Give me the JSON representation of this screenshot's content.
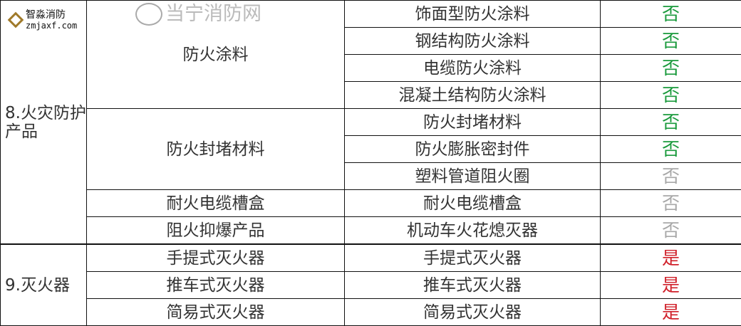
{
  "groups": [
    {
      "category": "8.火灾防护产品",
      "subgroups": [
        {
          "name": "防火涂料",
          "items": [
            {
              "product": "饰面型防火涂料",
              "status": "否",
              "color": "#1a9a3c"
            },
            {
              "product": "钢结构防火涂料",
              "status": "否",
              "color": "#1a9a3c"
            },
            {
              "product": "电缆防火涂料",
              "status": "否",
              "color": "#1a9a3c"
            },
            {
              "product": "混凝土结构防火涂料",
              "status": "否",
              "color": "#1a9a3c"
            }
          ]
        },
        {
          "name": "防火封堵材料",
          "items": [
            {
              "product": "防火封堵材料",
              "status": "否",
              "color": "#1a9a3c"
            },
            {
              "product": "防火膨胀密封件",
              "status": "否",
              "color": "#1a9a3c"
            },
            {
              "product": "塑料管道阻火圈",
              "status": "否",
              "color": "#a8a8a8"
            }
          ]
        },
        {
          "name": "耐火电缆槽盒",
          "items": [
            {
              "product": "耐火电缆槽盒",
              "status": "否",
              "color": "#a8a8a8"
            }
          ]
        },
        {
          "name": "阻火抑爆产品",
          "items": [
            {
              "product": "机动车火花熄灭器",
              "status": "否",
              "color": "#a8a8a8"
            }
          ]
        }
      ]
    },
    {
      "category": "9.灭火器",
      "subgroups": [
        {
          "name": "手提式灭火器",
          "items": [
            {
              "product": "手提式灭火器",
              "status": "是",
              "color": "#d0202a"
            }
          ]
        },
        {
          "name": "推车式灭火器",
          "items": [
            {
              "product": "推车式灭火器",
              "status": "是",
              "color": "#d0202a"
            }
          ]
        },
        {
          "name": "简易式灭火器",
          "items": [
            {
              "product": "简易式灭火器",
              "status": "是",
              "color": "#d0202a"
            }
          ]
        }
      ]
    }
  ],
  "watermark": {
    "text": "当宁消防网",
    "brand": "智淼消防",
    "url": "zmjaxf.com"
  }
}
